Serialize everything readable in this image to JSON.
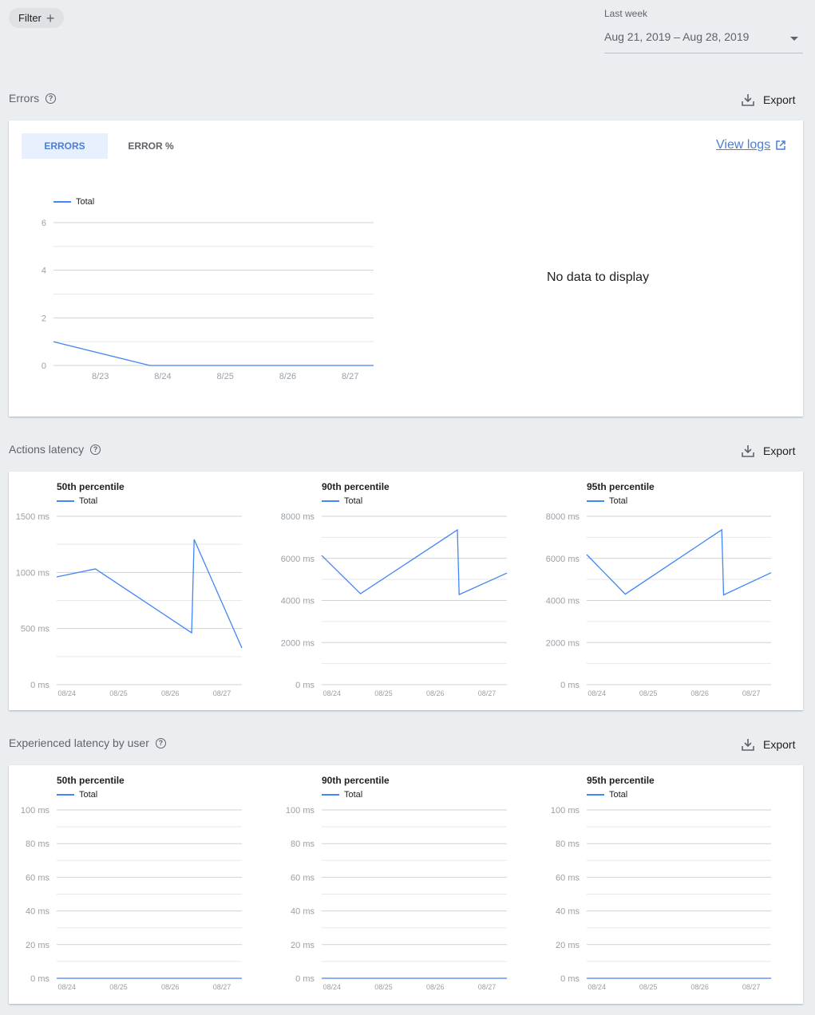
{
  "filter": {
    "label": "Filter",
    "icon": "plus-icon"
  },
  "date_range": {
    "label": "Last week",
    "value": "Aug 21, 2019 – Aug 28, 2019"
  },
  "sections": [
    {
      "title": "Errors",
      "export": "Export"
    },
    {
      "title": "Actions latency",
      "export": "Export"
    },
    {
      "title": "Experienced latency by user",
      "export": "Export"
    }
  ],
  "errors_card": {
    "tabs": [
      {
        "label": "ERRORS",
        "active": true
      },
      {
        "label": "ERROR %",
        "active": false
      }
    ],
    "view_logs": "View logs",
    "no_data": "No data to display"
  },
  "colors": {
    "accent": "#4285f4",
    "background": "#ebeef1",
    "tab_active_bg": "#e8f0fe",
    "link": "#4a7ed9"
  },
  "chart_data": [
    {
      "type": "line",
      "title": "",
      "legend": "Total",
      "ylim": [
        0,
        6
      ],
      "ygrid_step": 1,
      "yticks": [
        {
          "v": 0,
          "label": "0"
        },
        {
          "v": 2,
          "label": "2"
        },
        {
          "v": 4,
          "label": "4"
        },
        {
          "v": 6,
          "label": "6"
        }
      ],
      "xlim": [
        "2019-08-22T06:00",
        "2019-08-27T09:00"
      ],
      "xticks": [
        {
          "date": "2019-08-23",
          "label": "8/23"
        },
        {
          "date": "2019-08-24",
          "label": "8/24"
        },
        {
          "date": "2019-08-25",
          "label": "8/25"
        },
        {
          "date": "2019-08-26",
          "label": "8/26"
        },
        {
          "date": "2019-08-27",
          "label": "8/27"
        }
      ],
      "series": [
        {
          "name": "Total",
          "points": [
            [
              "2019-08-22T06:00",
              1
            ],
            [
              "2019-08-23T19:00",
              0
            ],
            [
              "2019-08-27T09:00",
              0
            ]
          ]
        }
      ]
    },
    {
      "type": "line",
      "title": "50th percentile",
      "legend": "Total",
      "ylim": [
        0,
        1500
      ],
      "ygrid_step": 250,
      "yticks": [
        {
          "v": 0,
          "label": "0 ms"
        },
        {
          "v": 500,
          "label": "500 ms"
        },
        {
          "v": 1000,
          "label": "1000 ms"
        },
        {
          "v": 1500,
          "label": "1500 ms"
        }
      ],
      "xlim": [
        "2019-08-23T19:00",
        "2019-08-27T09:00"
      ],
      "xticks": [
        {
          "date": "2019-08-24",
          "label": "08/24"
        },
        {
          "date": "2019-08-25",
          "label": "08/25"
        },
        {
          "date": "2019-08-26",
          "label": "08/26"
        },
        {
          "date": "2019-08-27",
          "label": "08/27"
        }
      ],
      "series": [
        {
          "name": "Total",
          "points": [
            [
              "2019-08-23T19:00",
              960
            ],
            [
              "2019-08-24T13:00",
              1031
            ],
            [
              "2019-08-26T09:40",
              462
            ],
            [
              "2019-08-26T10:50",
              1294
            ],
            [
              "2019-08-27T09:00",
              327
            ]
          ]
        }
      ]
    },
    {
      "type": "line",
      "title": "90th percentile",
      "legend": "Total",
      "ylim": [
        0,
        8000
      ],
      "ygrid_step": 1000,
      "yticks": [
        {
          "v": 0,
          "label": "0 ms"
        },
        {
          "v": 2000,
          "label": "2000 ms"
        },
        {
          "v": 4000,
          "label": "4000 ms"
        },
        {
          "v": 6000,
          "label": "6000 ms"
        },
        {
          "v": 8000,
          "label": "8000 ms"
        }
      ],
      "xlim": [
        "2019-08-23T19:00",
        "2019-08-27T09:00"
      ],
      "xticks": [
        {
          "date": "2019-08-24",
          "label": "08/24"
        },
        {
          "date": "2019-08-25",
          "label": "08/25"
        },
        {
          "date": "2019-08-26",
          "label": "08/26"
        },
        {
          "date": "2019-08-27",
          "label": "08/27"
        }
      ],
      "series": [
        {
          "name": "Total",
          "points": [
            [
              "2019-08-23T19:00",
              6140
            ],
            [
              "2019-08-24T13:00",
              4320
            ],
            [
              "2019-08-26T10:00",
              7350
            ],
            [
              "2019-08-26T10:50",
              4280
            ],
            [
              "2019-08-27T09:00",
              5300
            ]
          ]
        }
      ]
    },
    {
      "type": "line",
      "title": "95th percentile",
      "legend": "Total",
      "ylim": [
        0,
        8000
      ],
      "ygrid_step": 1000,
      "yticks": [
        {
          "v": 0,
          "label": "0 ms"
        },
        {
          "v": 2000,
          "label": "2000 ms"
        },
        {
          "v": 4000,
          "label": "4000 ms"
        },
        {
          "v": 6000,
          "label": "6000 ms"
        },
        {
          "v": 8000,
          "label": "8000 ms"
        }
      ],
      "xlim": [
        "2019-08-23T19:00",
        "2019-08-27T09:00"
      ],
      "xticks": [
        {
          "date": "2019-08-24",
          "label": "08/24"
        },
        {
          "date": "2019-08-25",
          "label": "08/25"
        },
        {
          "date": "2019-08-26",
          "label": "08/26"
        },
        {
          "date": "2019-08-27",
          "label": "08/27"
        }
      ],
      "series": [
        {
          "name": "Total",
          "points": [
            [
              "2019-08-23T19:00",
              6180
            ],
            [
              "2019-08-24T13:00",
              4300
            ],
            [
              "2019-08-26T10:00",
              7360
            ],
            [
              "2019-08-26T10:50",
              4260
            ],
            [
              "2019-08-27T09:00",
              5320
            ]
          ]
        }
      ]
    },
    {
      "type": "line",
      "title": "50th percentile",
      "legend": "Total",
      "ylim": [
        0,
        100
      ],
      "ygrid_step": 10,
      "yticks": [
        {
          "v": 0,
          "label": "0 ms"
        },
        {
          "v": 20,
          "label": "20 ms"
        },
        {
          "v": 40,
          "label": "40 ms"
        },
        {
          "v": 60,
          "label": "60 ms"
        },
        {
          "v": 80,
          "label": "80 ms"
        },
        {
          "v": 100,
          "label": "100 ms"
        }
      ],
      "xlim": [
        "2019-08-23T19:00",
        "2019-08-27T09:00"
      ],
      "xticks": [
        {
          "date": "2019-08-24",
          "label": "08/24"
        },
        {
          "date": "2019-08-25",
          "label": "08/25"
        },
        {
          "date": "2019-08-26",
          "label": "08/26"
        },
        {
          "date": "2019-08-27",
          "label": "08/27"
        }
      ],
      "series": [
        {
          "name": "Total",
          "points": [
            [
              "2019-08-23T19:00",
              0
            ],
            [
              "2019-08-27T09:00",
              0
            ]
          ]
        }
      ]
    },
    {
      "type": "line",
      "title": "90th percentile",
      "legend": "Total",
      "ylim": [
        0,
        100
      ],
      "ygrid_step": 10,
      "yticks": [
        {
          "v": 0,
          "label": "0 ms"
        },
        {
          "v": 20,
          "label": "20 ms"
        },
        {
          "v": 40,
          "label": "40 ms"
        },
        {
          "v": 60,
          "label": "60 ms"
        },
        {
          "v": 80,
          "label": "80 ms"
        },
        {
          "v": 100,
          "label": "100 ms"
        }
      ],
      "xlim": [
        "2019-08-23T19:00",
        "2019-08-27T09:00"
      ],
      "xticks": [
        {
          "date": "2019-08-24",
          "label": "08/24"
        },
        {
          "date": "2019-08-25",
          "label": "08/25"
        },
        {
          "date": "2019-08-26",
          "label": "08/26"
        },
        {
          "date": "2019-08-27",
          "label": "08/27"
        }
      ],
      "series": [
        {
          "name": "Total",
          "points": [
            [
              "2019-08-23T19:00",
              0
            ],
            [
              "2019-08-27T09:00",
              0
            ]
          ]
        }
      ]
    },
    {
      "type": "line",
      "title": "95th percentile",
      "legend": "Total",
      "ylim": [
        0,
        100
      ],
      "ygrid_step": 10,
      "yticks": [
        {
          "v": 0,
          "label": "0 ms"
        },
        {
          "v": 20,
          "label": "20 ms"
        },
        {
          "v": 40,
          "label": "40 ms"
        },
        {
          "v": 60,
          "label": "60 ms"
        },
        {
          "v": 80,
          "label": "80 ms"
        },
        {
          "v": 100,
          "label": "100 ms"
        }
      ],
      "xlim": [
        "2019-08-23T19:00",
        "2019-08-27T09:00"
      ],
      "xticks": [
        {
          "date": "2019-08-24",
          "label": "08/24"
        },
        {
          "date": "2019-08-25",
          "label": "08/25"
        },
        {
          "date": "2019-08-26",
          "label": "08/26"
        },
        {
          "date": "2019-08-27",
          "label": "08/27"
        }
      ],
      "series": [
        {
          "name": "Total",
          "points": [
            [
              "2019-08-23T19:00",
              0
            ],
            [
              "2019-08-27T09:00",
              0
            ]
          ]
        }
      ]
    }
  ]
}
